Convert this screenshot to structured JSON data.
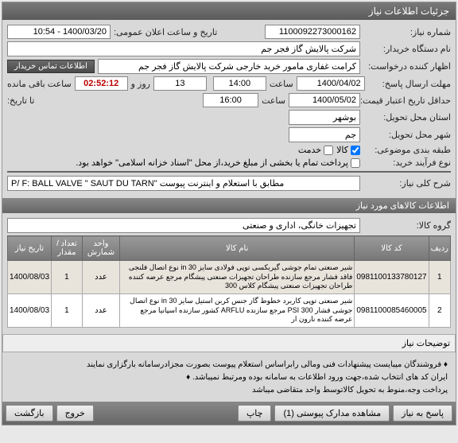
{
  "panel_title": "جزئیات اطلاعات نیاز",
  "fields": {
    "need_no_label": "شماره نیاز:",
    "need_no": "1100092273000162",
    "pub_label": "تاریخ و ساعت اعلان عمومی:",
    "pub_value": "1400/03/20 - 10:54",
    "buyer_dev_label": "نام دستگاه خریدار:",
    "buyer_dev": "شرکت پالایش گاز فجر جم",
    "applicant_label": "اظهار کننده درخواست:",
    "applicant": "کرامت غفاری مامور خرید خارجی شرکت پالایش گاز فجر جم",
    "contact_btn": "اطلاعات تماس خریدار",
    "deadline_label": "مهلت ارسال پاسخ:",
    "deadline_date": "1400/04/02",
    "time_label": "ساعت",
    "deadline_time": "14:00",
    "days_val": "13",
    "days_label": "روز و",
    "countdown": "02:52:12",
    "remain_label": "ساعت باقی مانده",
    "credit_label": "حداقل تاریخ اعتبار قیمت:",
    "credit_date": "1400/05/02",
    "credit_time": "16:00",
    "to_date_label": "تا تاریخ:",
    "province_label": "استان محل تحویل:",
    "province": "بوشهر",
    "city_label": "شهر محل تحویل:",
    "city": "جم",
    "cat_label": "طبقه بندی موضوعی:",
    "cat_goods": "کالا",
    "cat_service": "خدمت",
    "process_label": "نوع فرآیند خرید:",
    "process_text": "پرداخت تمام یا بخشی از مبلغ خرید،از محل \"اسناد خزانه اسلامی\" خواهد بود.",
    "rule": "━",
    "need_title_label": "شرح کلی نیاز:",
    "need_title": "P/ F: BALL VALVE \" SAUT  DU  TARN\"   مطابق با استعلام و اینترنت پیوست",
    "section2": "اطلاعات کالاهای مورد نیاز",
    "group_label": "گروه کالا:",
    "group": "تجهیزات خانگی، اداری و صنعتی"
  },
  "table": {
    "headers": [
      "ردیف",
      "کد کالا",
      "نام کالا",
      "واحد شمارش",
      "تعداد / مقدار",
      "تاریخ نیاز"
    ],
    "rows": [
      {
        "n": "1",
        "code": "0981100133780127",
        "name": "شیر صنعتی تمام جوشی گیربکسی توپی فولادی سایز 30 in نوع اتصال فلنجی فاقد فشار مرجع سازنده طراحان تجهیزات صنعتی پیشگام مرجع عرضه کننده طراحان تجهیزات صنعتی پیشگام کلاس 300",
        "unit": "عدد",
        "qty": "1",
        "date": "1400/08/03",
        "odd": true
      },
      {
        "n": "2",
        "code": "0981100085460005",
        "name": "شیر صنعتی توپی کاربرد خطوط گاز جنس کربن استیل سایز 30 in نوع اتصال جوشی فشار PSI 300 مرجع سازنده ARFLU کشور سازنده اسپانیا مرجع عرضه کننده نارون ار",
        "unit": "عدد",
        "qty": "1",
        "date": "1400/08/03",
        "odd": false
      }
    ]
  },
  "notes": {
    "header": "توضیحات نیاز",
    "l1": "♦ فروشندگان میبایست پیشنهادات فنی ومالی رابراساس استعلام پیوست بصورت مجزادرسامانه بارگزاری نمایند",
    "l2": "ایران کد های انتخاب شده،جهت ورود اطلاعات به سامانه بوده ومرتبط نمیباشد. ♦",
    "l3": "پرداخت وجه،منوط به تحویل کالاتوسط واحد متقاضی میباشد"
  },
  "footer": {
    "reply": "پاسخ به نیاز",
    "attach": "مشاهده مدارک پیوستی (1)",
    "print": "چاپ",
    "close": "خروج",
    "back": "بازگشت"
  }
}
